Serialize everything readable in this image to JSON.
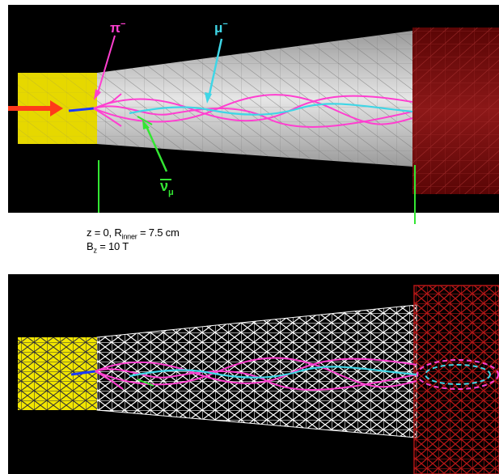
{
  "labels": {
    "pi_minus": "π",
    "pi_minus_sup": "−",
    "mu_minus": "μ",
    "mu_minus_sup": "−",
    "nu": "ν",
    "nu_sub": "μ"
  },
  "caption": {
    "line1_prefix": "z = 0, R",
    "line1_sub": "inner",
    "line1_suffix": " = 7.5 cm",
    "line2_prefix": "B",
    "line2_sub": "z",
    "line2_suffix": " = 10 T"
  },
  "colors": {
    "background": "#000000",
    "target": "#f2e600",
    "solenoid_shaded": "#cfcfcf",
    "downstream": "#7a0a0a",
    "pion_track": "#ff3fd0",
    "muon_track": "#3fd6e6",
    "neutrino_track": "#33e633",
    "beam_arrow": "#ff3a1a",
    "beam_particle": "#1a3aff"
  }
}
